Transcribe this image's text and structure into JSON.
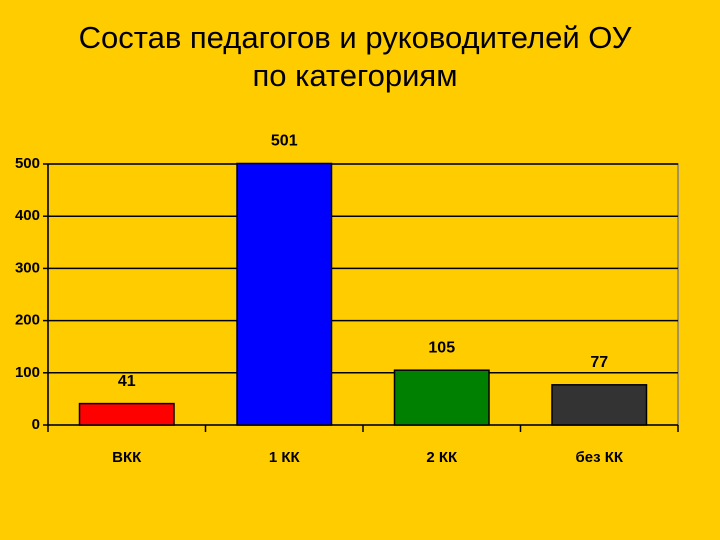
{
  "chart_data": {
    "type": "bar",
    "title": [
      "Состав педагогов и руководителей ОУ",
      "по категориям"
    ],
    "categories": [
      "ВКК",
      "1 КК",
      "2 КК",
      "без КК"
    ],
    "values": [
      41,
      501,
      105,
      77
    ],
    "colors": [
      "#ff0000",
      "#0000ff",
      "#008000",
      "#333333"
    ],
    "ylim": [
      0,
      500
    ],
    "yticks": [
      0,
      100,
      200,
      300,
      400,
      500
    ],
    "grid": true
  }
}
